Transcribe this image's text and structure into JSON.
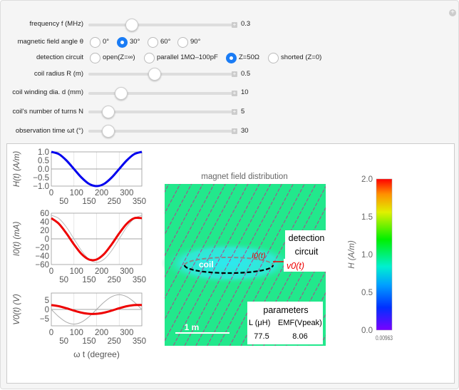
{
  "controls": {
    "frequency": {
      "label": "frequency f (MHz)",
      "value": "0.3",
      "fraction": 0.28
    },
    "angle": {
      "label": "magnetic field angle θ",
      "options": [
        "0°",
        "30°",
        "60°",
        "90°"
      ],
      "selected": 1
    },
    "circuit": {
      "label": "detection circuit",
      "options": [
        "open(Z=∞)",
        "parallel 1MΩ–100pF",
        "Z=50Ω",
        "shorted (Z=0)"
      ],
      "selected": 2
    },
    "radius": {
      "label": "coil radius R (m)",
      "value": "0.5",
      "fraction": 0.45
    },
    "winding": {
      "label": "coil winding dia. d (mm)",
      "value": "10",
      "fraction": 0.2
    },
    "turns": {
      "label": "coil's number of turns N",
      "value": "5",
      "fraction": 0.1
    },
    "time": {
      "label": "observation time ωt (°)",
      "value": "30",
      "fraction": 0.1
    }
  },
  "map": {
    "title": "magnet field distribution",
    "coil_label": "coil",
    "detection_label": "detection circuit",
    "current_label": "I0(t)",
    "voltage_label": "v0(t)",
    "scale_label": "1 m",
    "params": {
      "title": "parameters",
      "col1": "L (μH)",
      "col2": "EMF(Vpeak)",
      "val1": "77.5",
      "val2": "8.06"
    },
    "background_color": "#22e88c",
    "arrow_color": "#c0308a"
  },
  "colorbar": {
    "label": "H (A/m)",
    "ticks": [
      "0.0",
      "0.5",
      "1.0",
      "1.5",
      "2.0"
    ],
    "range": [
      0,
      2
    ],
    "bottom_label": "0.00963"
  },
  "chart_data": [
    {
      "type": "line",
      "ylabel": "H(t) (A/m)",
      "xlabel": "",
      "ylim": [
        -1,
        1
      ],
      "xlim": [
        0,
        360
      ],
      "yticks": [
        "1.0",
        "0.5",
        "0.0",
        "−0.5",
        "−1.0"
      ],
      "ytick_values": [
        1,
        0.5,
        0,
        -0.5,
        -1
      ],
      "xticks": [
        0,
        50,
        100,
        150,
        200,
        250,
        300,
        350
      ],
      "x": [
        0,
        30,
        60,
        90,
        120,
        150,
        180,
        210,
        240,
        270,
        300,
        330,
        360
      ],
      "series": [
        {
          "color": "#0000ee",
          "width": 3,
          "values": [
            1,
            0.87,
            0.5,
            0,
            -0.5,
            -0.87,
            -1,
            -0.87,
            -0.5,
            0,
            0.5,
            0.87,
            1
          ]
        }
      ]
    },
    {
      "type": "line",
      "ylabel": "I0(t) (mA)",
      "xlabel": "",
      "ylim": [
        -60,
        60
      ],
      "xlim": [
        0,
        360
      ],
      "yticks": [
        "60",
        "40",
        "20",
        "0",
        "−20",
        "−40",
        "−60"
      ],
      "ytick_values": [
        60,
        40,
        20,
        0,
        -20,
        -40,
        -60
      ],
      "xticks": [
        0,
        50,
        100,
        150,
        200,
        250,
        300,
        350
      ],
      "x": [
        0,
        30,
        60,
        90,
        120,
        150,
        180,
        210,
        240,
        270,
        300,
        330,
        360
      ],
      "series": [
        {
          "color": "#bbbbbb",
          "width": 1,
          "values": [
            55,
            47.6,
            27.5,
            0,
            -27.5,
            -47.6,
            -55,
            -47.6,
            -27.5,
            0,
            27.5,
            47.6,
            55
          ]
        },
        {
          "color": "#ee0000",
          "width": 3,
          "values": [
            48.3,
            35.4,
            12.9,
            -12.9,
            -35.4,
            -48.3,
            -48.3,
            -35.4,
            -12.9,
            12.9,
            35.4,
            48.3,
            48.3
          ]
        }
      ]
    },
    {
      "type": "line",
      "ylabel": "V0(t) (V)",
      "xlabel": "ω t (degree)",
      "ylim": [
        -9,
        9
      ],
      "xlim": [
        0,
        360
      ],
      "yticks": [
        "5",
        "0",
        "−5"
      ],
      "ytick_values": [
        5,
        0,
        -5
      ],
      "xticks": [
        0,
        50,
        100,
        150,
        200,
        250,
        300,
        350
      ],
      "x": [
        0,
        30,
        60,
        90,
        120,
        150,
        180,
        210,
        240,
        270,
        300,
        330,
        360
      ],
      "series": [
        {
          "color": "#aaaaaa",
          "width": 1,
          "values": [
            0,
            -4.03,
            -6.98,
            -8.06,
            -6.98,
            -4.03,
            0,
            4.03,
            6.98,
            8.06,
            6.98,
            4.03,
            0
          ]
        },
        {
          "color": "#ee0000",
          "width": 3,
          "values": [
            2.41,
            1.77,
            0.65,
            -0.65,
            -1.77,
            -2.41,
            -2.41,
            -1.77,
            -0.65,
            0.65,
            1.77,
            2.41,
            2.41
          ]
        }
      ]
    }
  ]
}
